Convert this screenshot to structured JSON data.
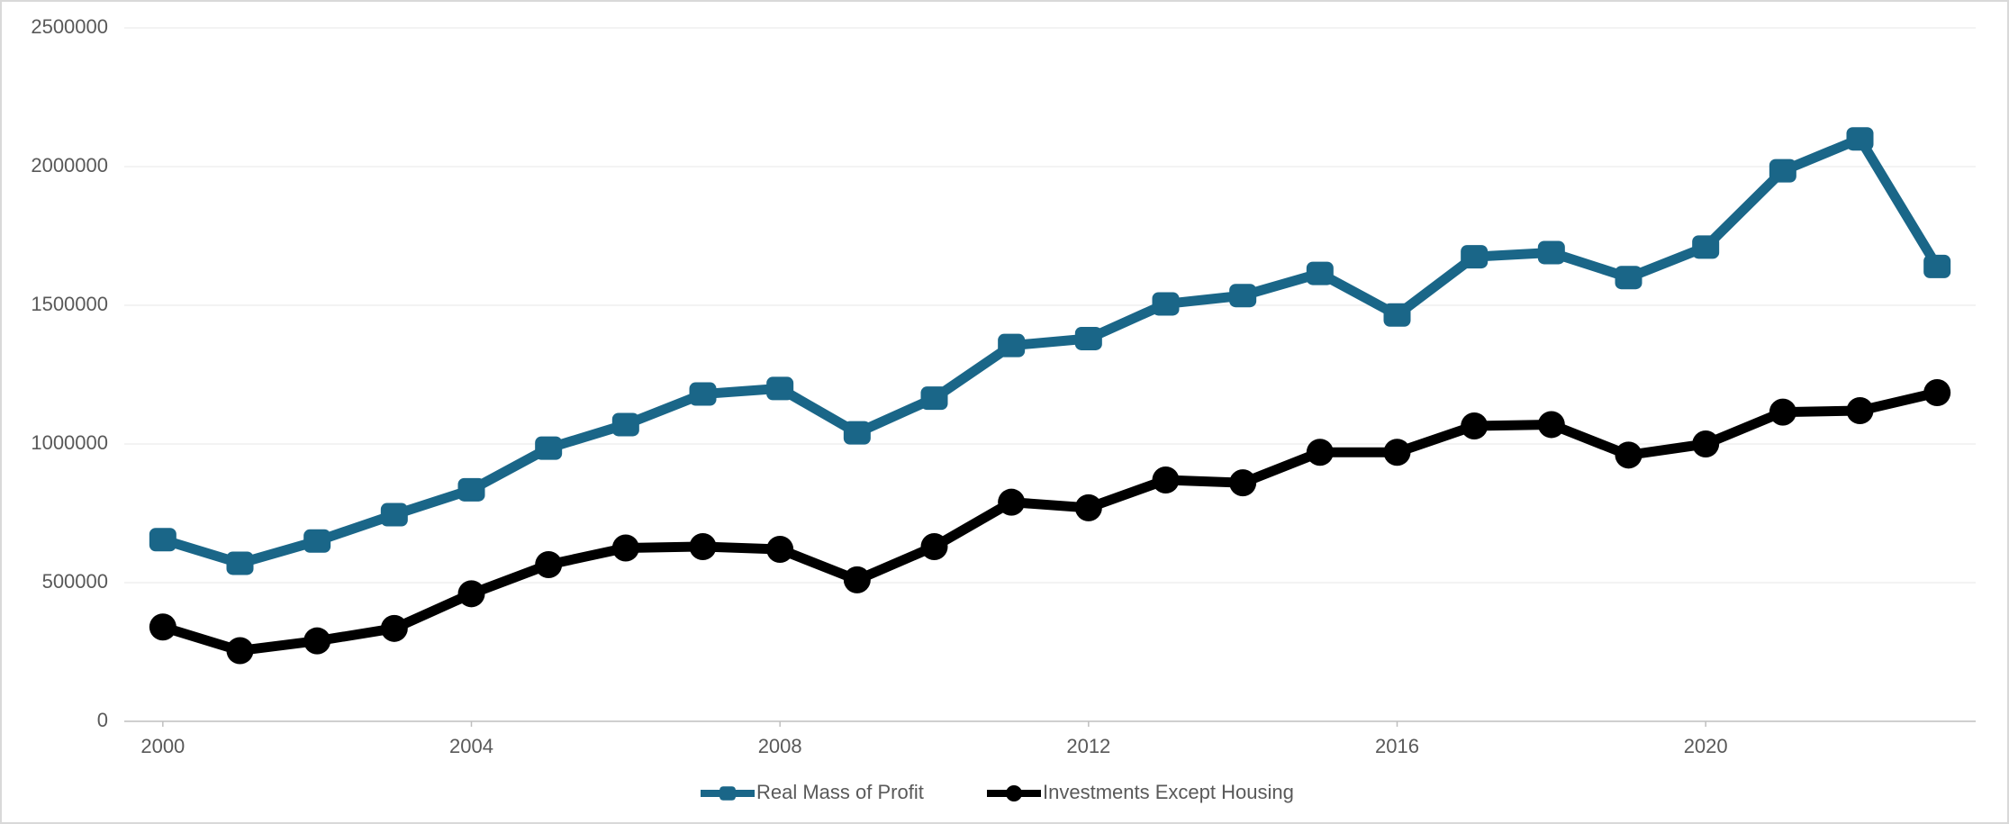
{
  "chart_data": {
    "type": "line",
    "x": [
      2000,
      2001,
      2002,
      2003,
      2004,
      2005,
      2006,
      2007,
      2008,
      2009,
      2010,
      2011,
      2012,
      2013,
      2014,
      2015,
      2016,
      2017,
      2018,
      2019,
      2020,
      2021,
      2022,
      2023
    ],
    "series": [
      {
        "name": "Real Mass of Profit",
        "color": "#1a6688",
        "marker": "square",
        "values": [
          655000,
          570000,
          650000,
          745000,
          835000,
          985000,
          1070000,
          1180000,
          1200000,
          1040000,
          1165000,
          1355000,
          1380000,
          1505000,
          1535000,
          1615000,
          1465000,
          1675000,
          1690000,
          1600000,
          1710000,
          1985000,
          2100000,
          1640000
        ]
      },
      {
        "name": "Investments Except Housing",
        "color": "#000000",
        "marker": "circle",
        "values": [
          340000,
          255000,
          290000,
          335000,
          460000,
          565000,
          625000,
          630000,
          620000,
          510000,
          630000,
          790000,
          770000,
          870000,
          860000,
          970000,
          970000,
          1065000,
          1070000,
          960000,
          1000000,
          1115000,
          1120000,
          1185000
        ]
      }
    ],
    "xlim": [
      1999.5,
      2023.5
    ],
    "xticks": [
      2000,
      2004,
      2008,
      2012,
      2016,
      2020
    ],
    "ylim": [
      0,
      2500000
    ],
    "yticks": [
      0,
      500000,
      1000000,
      1500000,
      2000000,
      2500000
    ],
    "grid": true,
    "legend": "bottom"
  }
}
